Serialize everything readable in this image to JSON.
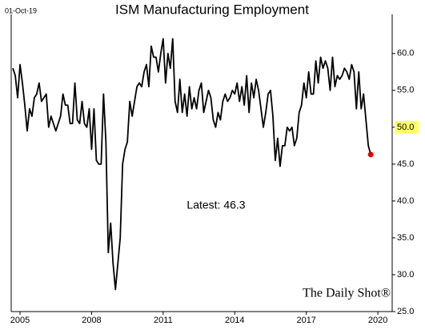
{
  "chart_data": {
    "type": "line",
    "date_stamp": "01-Oct-19",
    "title": "ISM Manufacturing Employment",
    "annotation": "Latest:  46.3",
    "watermark": "The Daily Shot®",
    "color": "#000000",
    "last_point_color": "#e00000",
    "highlight_ytick": 50,
    "highlight_color": "#ffff66",
    "xlim": [
      2004.63,
      2020.6
    ],
    "xticks": [
      2005,
      2008,
      2011,
      2014,
      2017,
      2020
    ],
    "ylim": [
      25,
      65.3
    ],
    "yticks": [
      {
        "value": 25,
        "label": "25.0"
      },
      {
        "value": 30,
        "label": "30.0"
      },
      {
        "value": 35,
        "label": "35.0"
      },
      {
        "value": 40,
        "label": "40.0"
      },
      {
        "value": 45,
        "label": "45.0"
      },
      {
        "value": 50,
        "label": "50.0"
      },
      {
        "value": 55,
        "label": "55.0"
      },
      {
        "value": 60,
        "label": "60.0"
      }
    ],
    "x": [
      2004.7,
      2004.8,
      2004.9,
      2005.0,
      2005.1,
      2005.2,
      2005.3,
      2005.4,
      2005.5,
      2005.6,
      2005.7,
      2005.8,
      2005.9,
      2006.0,
      2006.1,
      2006.2,
      2006.3,
      2006.4,
      2006.5,
      2006.6,
      2006.7,
      2006.8,
      2006.9,
      2007.0,
      2007.1,
      2007.2,
      2007.3,
      2007.4,
      2007.5,
      2007.6,
      2007.7,
      2007.8,
      2007.9,
      2008.0,
      2008.1,
      2008.2,
      2008.3,
      2008.4,
      2008.5,
      2008.6,
      2008.7,
      2008.8,
      2008.9,
      2009.0,
      2009.1,
      2009.2,
      2009.3,
      2009.4,
      2009.5,
      2009.6,
      2009.7,
      2009.8,
      2009.9,
      2010.0,
      2010.1,
      2010.2,
      2010.3,
      2010.4,
      2010.5,
      2010.6,
      2010.7,
      2010.8,
      2010.9,
      2011.0,
      2011.1,
      2011.2,
      2011.3,
      2011.4,
      2011.5,
      2011.6,
      2011.7,
      2011.8,
      2011.9,
      2012.0,
      2012.1,
      2012.2,
      2012.3,
      2012.4,
      2012.5,
      2012.6,
      2012.7,
      2012.8,
      2012.9,
      2013.0,
      2013.1,
      2013.2,
      2013.3,
      2013.4,
      2013.5,
      2013.6,
      2013.7,
      2013.8,
      2013.9,
      2014.0,
      2014.1,
      2014.2,
      2014.3,
      2014.4,
      2014.5,
      2014.6,
      2014.7,
      2014.8,
      2014.9,
      2015.0,
      2015.1,
      2015.2,
      2015.3,
      2015.4,
      2015.5,
      2015.6,
      2015.7,
      2015.8,
      2015.9,
      2016.0,
      2016.1,
      2016.2,
      2016.3,
      2016.4,
      2016.5,
      2016.6,
      2016.7,
      2016.8,
      2016.9,
      2017.0,
      2017.1,
      2017.2,
      2017.3,
      2017.4,
      2017.5,
      2017.6,
      2017.7,
      2017.8,
      2017.9,
      2018.0,
      2018.1,
      2018.2,
      2018.3,
      2018.4,
      2018.5,
      2018.6,
      2018.7,
      2018.8,
      2018.9,
      2019.0,
      2019.1,
      2019.2,
      2019.3,
      2019.4,
      2019.5,
      2019.6,
      2019.7
    ],
    "values": [
      58.0,
      57,
      54,
      58.5,
      56,
      53,
      49.5,
      52.5,
      51.5,
      54,
      54.5,
      56,
      53.5,
      54,
      54.5,
      50,
      51.5,
      50.5,
      49.5,
      50.5,
      51.5,
      54.5,
      53,
      53,
      50.5,
      50.5,
      56,
      51,
      50.5,
      53.5,
      50.5,
      50,
      52.5,
      47,
      52.5,
      45.5,
      45,
      45,
      54.5,
      48,
      33,
      37,
      31.5,
      28,
      31.5,
      35,
      45,
      47,
      48,
      53.5,
      51.5,
      53.5,
      55.5,
      56,
      55.5,
      57.5,
      58.5,
      55.5,
      61,
      59.5,
      59.5,
      57.5,
      60,
      62,
      56,
      60,
      58,
      62,
      53.5,
      52,
      56.5,
      52,
      54.5,
      51.5,
      55.5,
      52.5,
      54,
      52.5,
      55,
      56,
      52,
      53.5,
      55,
      54,
      51,
      50,
      52,
      51,
      53.5,
      54.5,
      53.5,
      54,
      55,
      54.5,
      56,
      53.5,
      55.5,
      53,
      57,
      52,
      56,
      54,
      56.5,
      55,
      52.5,
      50,
      52,
      54.5,
      55,
      51.5,
      45.5,
      48.5,
      44.7,
      47.5,
      47.5,
      50,
      49.5,
      50,
      47.5,
      48.5,
      52,
      53,
      56,
      54,
      57.5,
      54.5,
      54.5,
      59,
      56,
      59.5,
      58,
      59,
      58,
      55,
      59.5,
      55.5,
      57,
      56.5,
      57,
      58,
      57.5,
      56.5,
      58.5,
      57.5,
      52.5,
      57.5,
      52.5,
      54.5,
      51,
      47.5,
      46.3
    ]
  }
}
